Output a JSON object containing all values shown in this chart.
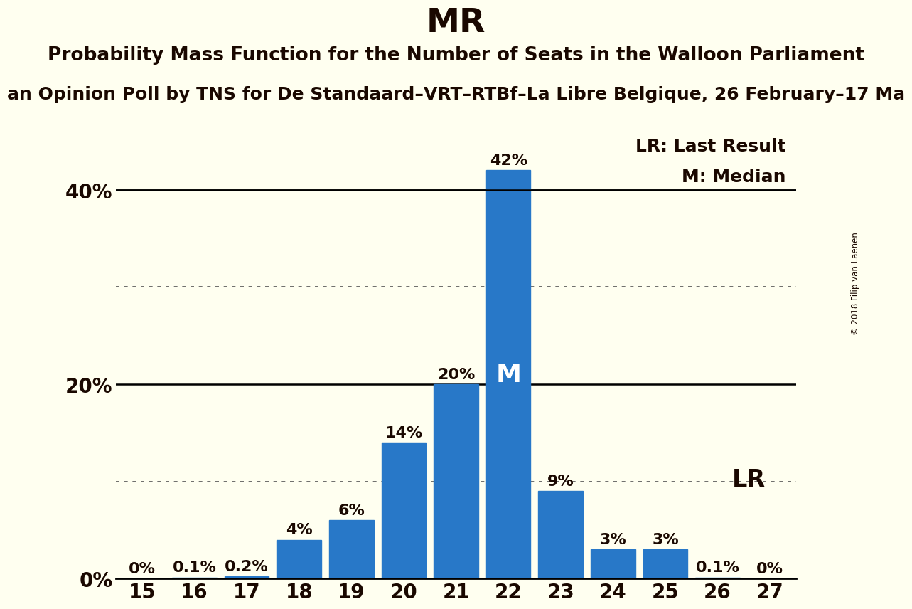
{
  "title": "MR",
  "subtitle": "Probability Mass Function for the Number of Seats in the Walloon Parliament",
  "source": "an Opinion Poll by TNS for De Standaard–VRT–RTBf–La Libre Belgique, 26 February–17 Ma",
  "copyright": "© 2018 Filip van Laenen",
  "seats": [
    15,
    16,
    17,
    18,
    19,
    20,
    21,
    22,
    23,
    24,
    25,
    26,
    27
  ],
  "probabilities": [
    0.0,
    0.1,
    0.2,
    4.0,
    6.0,
    14.0,
    20.0,
    42.0,
    9.0,
    3.0,
    3.0,
    0.1,
    0.0
  ],
  "bar_color": "#2878C8",
  "background_color": "#FFFFF0",
  "median_seat": 22,
  "lr_seat": 25,
  "ytick_labels": [
    "0%",
    "",
    "20%",
    "",
    "40%"
  ],
  "ytick_vals": [
    0,
    10,
    20,
    30,
    40
  ],
  "ylim": [
    0,
    46
  ],
  "legend_lr": "LR: Last Result",
  "legend_m": "M: Median",
  "title_fontsize": 34,
  "subtitle_fontsize": 19,
  "source_fontsize": 18,
  "bar_label_fontsize": 16,
  "axis_fontsize": 20,
  "legend_fontsize": 18,
  "lr_label_fontsize": 24,
  "text_color": "#1a0800",
  "dotted_line_color": "#555555",
  "solid_line_color": "#000000"
}
